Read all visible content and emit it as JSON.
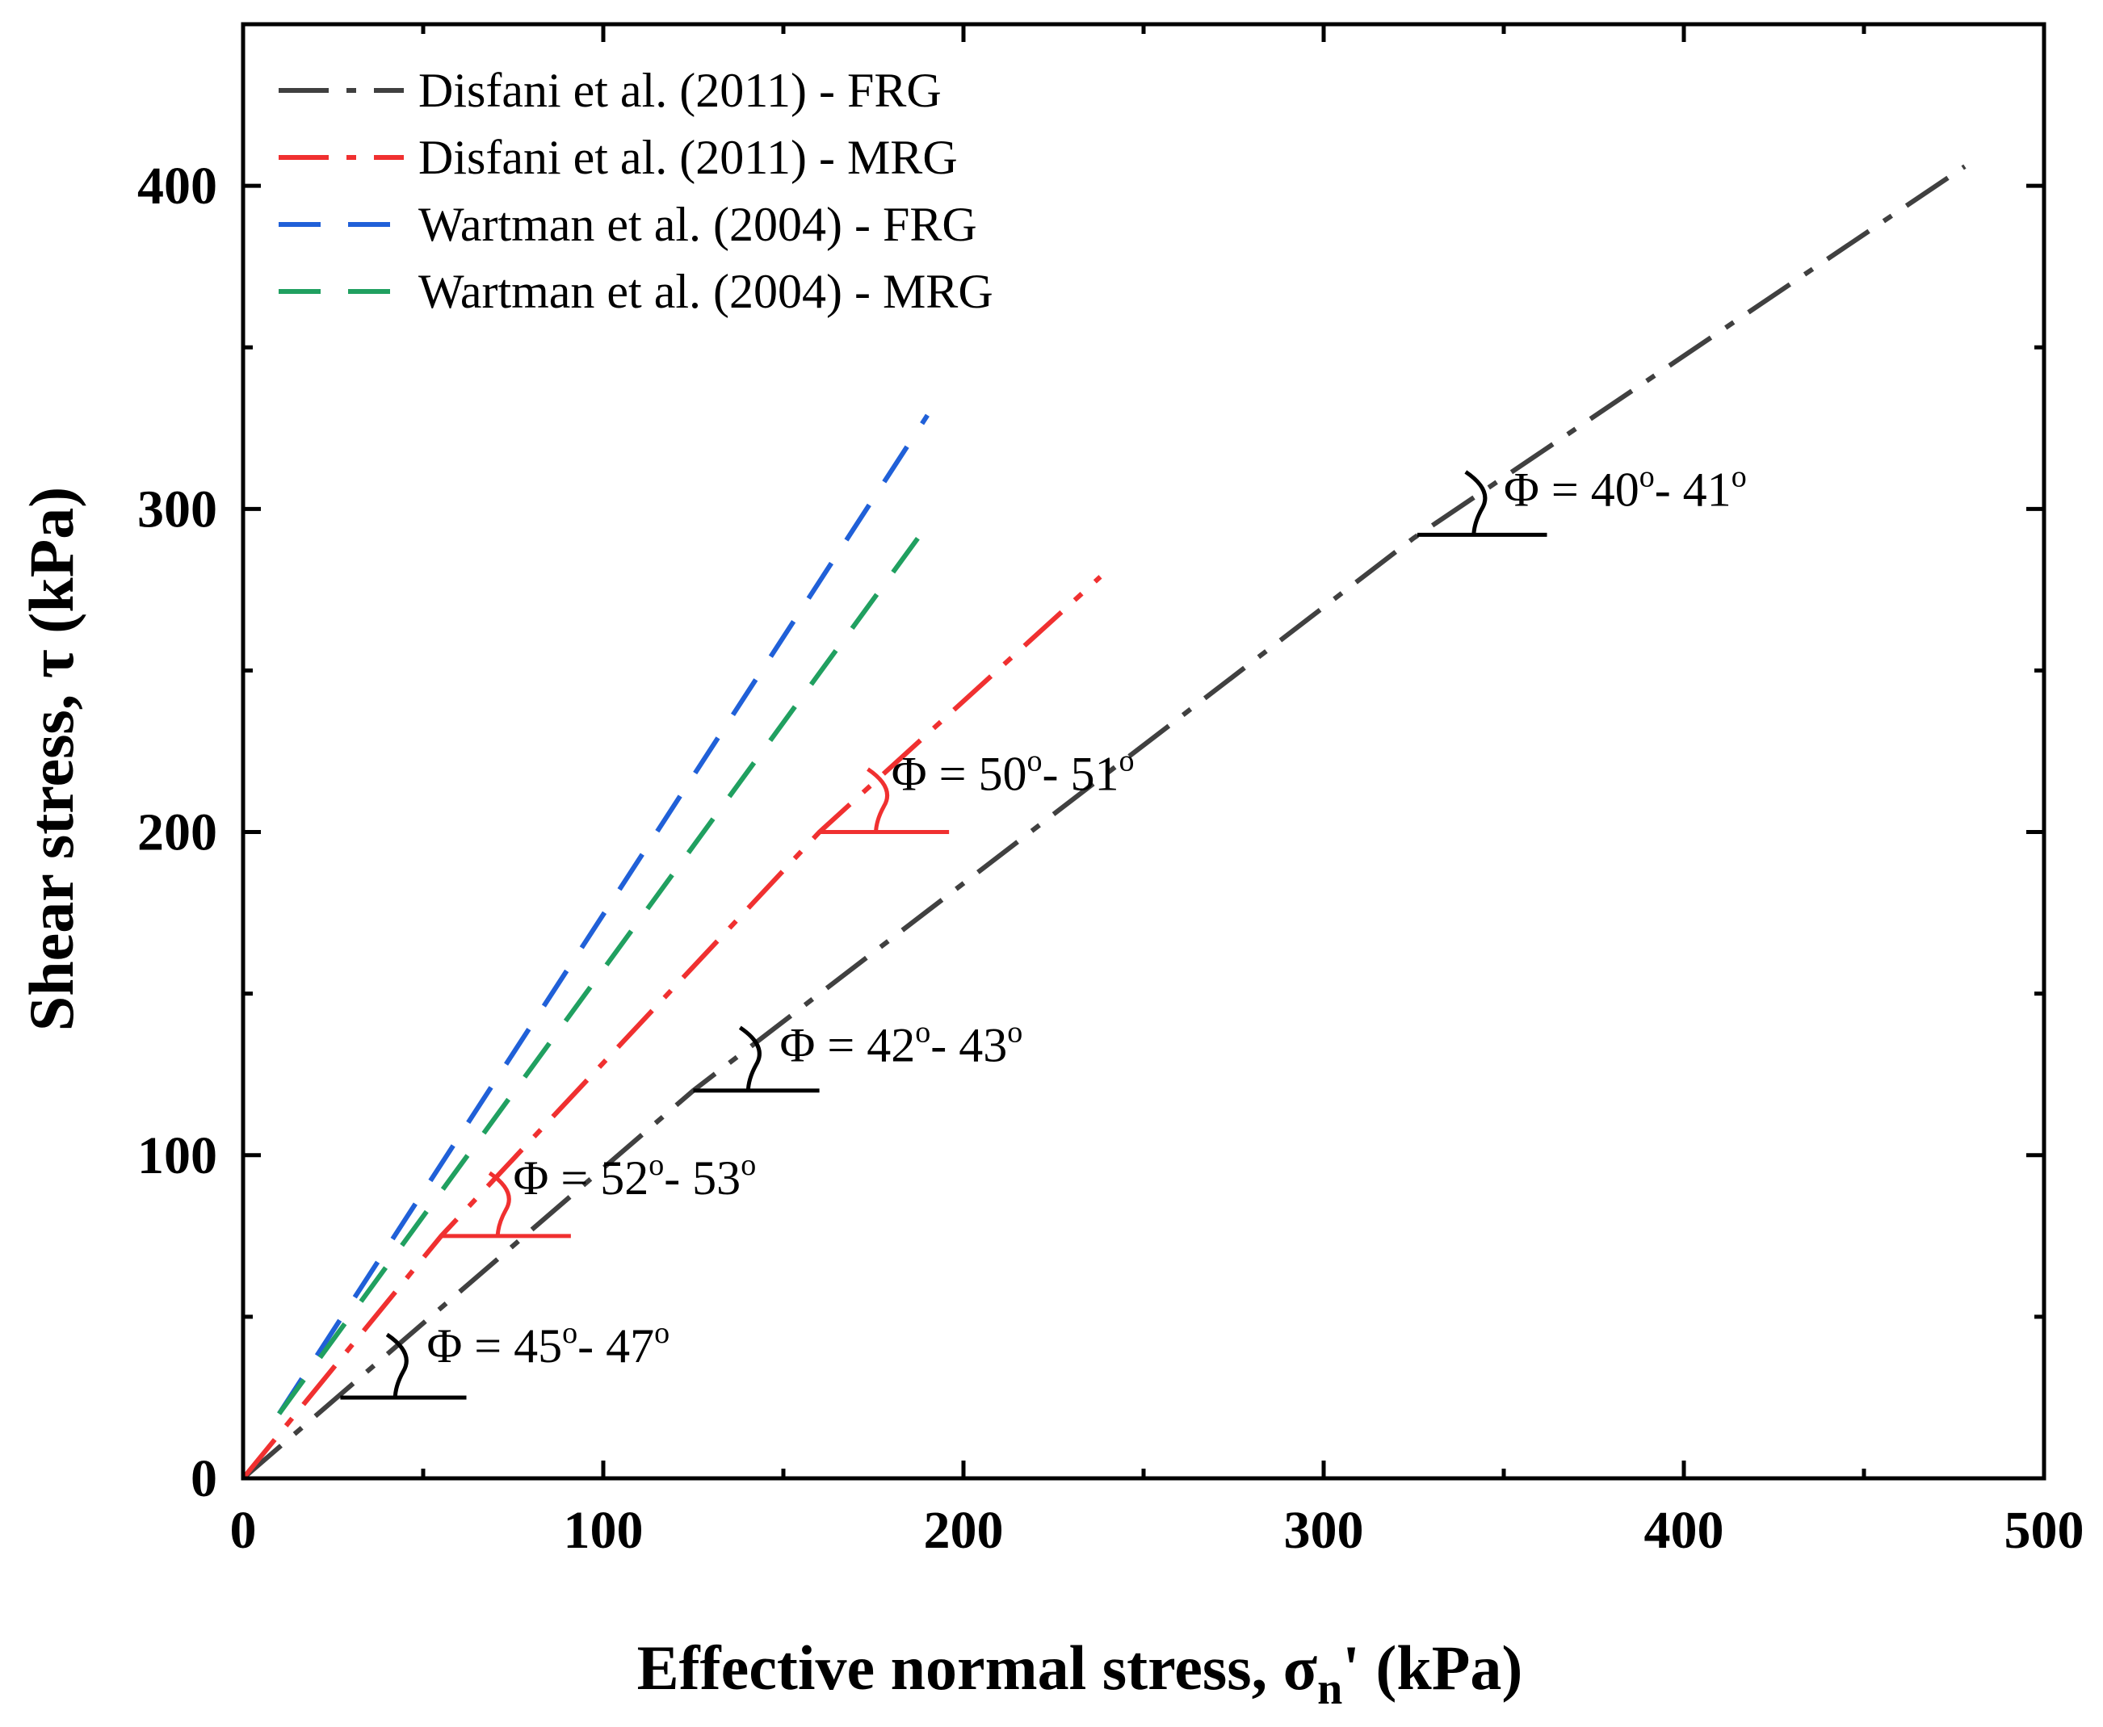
{
  "chart_data": {
    "type": "line",
    "xlabel_main": "Effective normal stress, σ",
    "xlabel_sub": "n",
    "xlabel_tail": "' (kPa)",
    "ylabel": "Shear stress, τ (kPa)",
    "xlim": [
      0,
      500
    ],
    "ylim": [
      0,
      450
    ],
    "xticks": [
      0,
      100,
      200,
      300,
      400,
      500
    ],
    "yticks": [
      0,
      100,
      200,
      300,
      400
    ],
    "grid": false,
    "legend_position": "top-left",
    "series": [
      {
        "name": "Disfani et al. (2011) - FRG",
        "color": "#404040",
        "dash": "dashdot",
        "x": [
          0,
          125,
          325,
          478
        ],
        "y": [
          0,
          120,
          291,
          406
        ]
      },
      {
        "name": "Disfani et al. (2011) - MRG",
        "color": "#f03030",
        "dash": "dashdot",
        "x": [
          0,
          55,
          160,
          238
        ],
        "y": [
          0,
          75,
          200,
          279
        ]
      },
      {
        "name": "Wartman et al. (2004) - FRG",
        "color": "#2060d8",
        "dash": "dashed",
        "x": [
          10,
          190
        ],
        "y": [
          20,
          329
        ]
      },
      {
        "name": "Wartman et al. (2004) - MRG",
        "color": "#20a060",
        "dash": "dashed",
        "x": [
          10,
          190
        ],
        "y": [
          20,
          295
        ]
      }
    ],
    "annotations": [
      {
        "phi": "Φ",
        "sep": " = ",
        "a": "45",
        "sup1": "o",
        "mid": "- ",
        "b": "47",
        "sup2": "o",
        "color": "#000000",
        "base_x": 27,
        "base_y": 25,
        "line_len": 35,
        "text_x": 51,
        "text_y": 36
      },
      {
        "phi": "Φ",
        "sep": " = ",
        "a": "52",
        "sup1": "o",
        "mid": "- ",
        "b": "53",
        "sup2": "o",
        "color": "#f03030",
        "base_x": 55,
        "base_y": 75,
        "line_len": 36,
        "text_x": 75,
        "text_y": 88
      },
      {
        "phi": "Φ",
        "sep": " = ",
        "a": "42",
        "sup1": "o",
        "mid": "- ",
        "b": "43",
        "sup2": "o",
        "color": "#000000",
        "base_x": 125,
        "base_y": 120,
        "line_len": 35,
        "text_x": 149,
        "text_y": 129
      },
      {
        "phi": "Φ",
        "sep": " = ",
        "a": "50",
        "sup1": "o",
        "mid": "- ",
        "b": "51",
        "sup2": "o",
        "color": "#f03030",
        "base_x": 160,
        "base_y": 200,
        "line_len": 36,
        "text_x": 180,
        "text_y": 213
      },
      {
        "phi": "Φ",
        "sep": " = ",
        "a": "40",
        "sup1": "o",
        "mid": "- ",
        "b": "41",
        "sup2": "o",
        "color": "#000000",
        "base_x": 326,
        "base_y": 292,
        "line_len": 36,
        "text_x": 350,
        "text_y": 301
      }
    ]
  }
}
